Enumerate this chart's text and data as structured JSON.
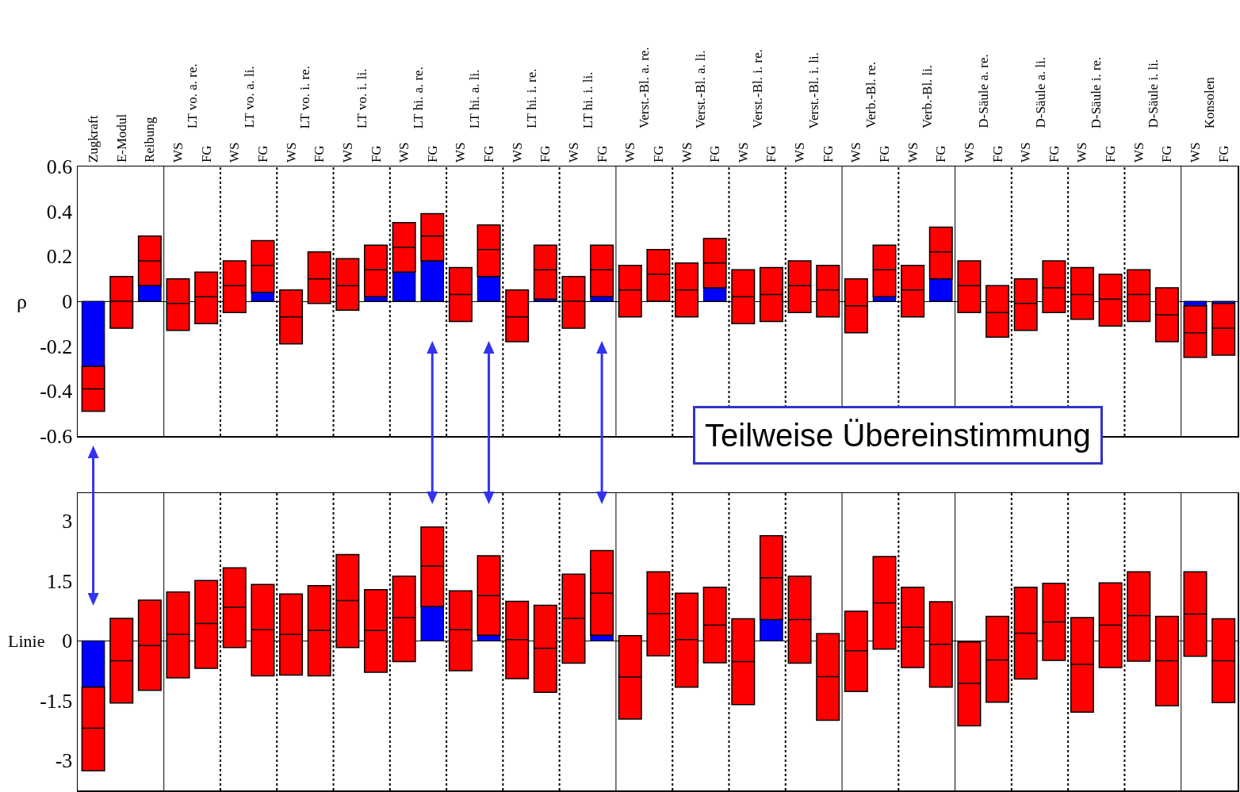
{
  "chart_data": [
    {
      "type": "box",
      "ylabel": "ρ",
      "ylim": [
        -0.6,
        0.6
      ],
      "yticks": [
        0.6,
        0.4,
        0.2,
        0,
        -0.2,
        -0.4,
        -0.6
      ],
      "categories": [
        "Zugkraft",
        "E-Modul",
        "Reibung",
        "WS",
        "FG",
        "WS",
        "FG",
        "WS",
        "FG",
        "WS",
        "FG",
        "WS",
        "FG",
        "WS",
        "FG",
        "WS",
        "FG",
        "WS",
        "FG",
        "WS",
        "FG",
        "WS",
        "FG",
        "WS",
        "FG",
        "WS",
        "FG",
        "WS",
        "FG",
        "WS",
        "FG",
        "WS",
        "FG",
        "WS",
        "FG",
        "WS",
        "FG",
        "WS",
        "FG",
        "WS",
        "FG"
      ],
      "series": [
        {
          "type": "bar",
          "color": "#0000ff",
          "values": [
            -0.29,
            null,
            0.07,
            null,
            null,
            null,
            0.04,
            null,
            null,
            null,
            0.02,
            0.13,
            0.18,
            null,
            0.11,
            null,
            0.01,
            null,
            0.02,
            null,
            null,
            null,
            0.06,
            null,
            null,
            null,
            null,
            null,
            0.02,
            null,
            0.1,
            null,
            null,
            null,
            null,
            null,
            null,
            null,
            null,
            -0.02,
            -0.01
          ]
        },
        {
          "type": "box",
          "color": "#ff0000",
          "boxes": [
            {
              "low": -0.49,
              "q1": -0.49,
              "median": -0.39,
              "q3": -0.29,
              "high": -0.29
            },
            {
              "low": -0.12,
              "q1": -0.12,
              "median": 0.0,
              "q3": 0.11,
              "high": 0.11
            },
            {
              "low": 0.07,
              "q1": 0.07,
              "median": 0.18,
              "q3": 0.29,
              "high": 0.29
            },
            {
              "low": -0.13,
              "q1": -0.13,
              "median": -0.01,
              "q3": 0.1,
              "high": 0.1
            },
            {
              "low": -0.1,
              "q1": -0.1,
              "median": 0.02,
              "q3": 0.13,
              "high": 0.13
            },
            {
              "low": -0.05,
              "q1": -0.05,
              "median": 0.07,
              "q3": 0.18,
              "high": 0.18
            },
            {
              "low": 0.04,
              "q1": 0.04,
              "median": 0.16,
              "q3": 0.27,
              "high": 0.27
            },
            {
              "low": -0.19,
              "q1": -0.19,
              "median": -0.07,
              "q3": 0.05,
              "high": 0.05
            },
            {
              "low": -0.01,
              "q1": -0.01,
              "median": 0.1,
              "q3": 0.22,
              "high": 0.22
            },
            {
              "low": -0.04,
              "q1": -0.04,
              "median": 0.07,
              "q3": 0.19,
              "high": 0.19
            },
            {
              "low": 0.02,
              "q1": 0.02,
              "median": 0.14,
              "q3": 0.25,
              "high": 0.25
            },
            {
              "low": 0.13,
              "q1": 0.13,
              "median": 0.24,
              "q3": 0.35,
              "high": 0.35
            },
            {
              "low": 0.18,
              "q1": 0.18,
              "median": 0.29,
              "q3": 0.39,
              "high": 0.39
            },
            {
              "low": -0.09,
              "q1": -0.09,
              "median": 0.03,
              "q3": 0.15,
              "high": 0.15
            },
            {
              "low": 0.11,
              "q1": 0.11,
              "median": 0.23,
              "q3": 0.34,
              "high": 0.34
            },
            {
              "low": -0.18,
              "q1": -0.18,
              "median": -0.07,
              "q3": 0.05,
              "high": 0.05
            },
            {
              "low": 0.01,
              "q1": 0.01,
              "median": 0.14,
              "q3": 0.25,
              "high": 0.25
            },
            {
              "low": -0.12,
              "q1": -0.12,
              "median": 0.0,
              "q3": 0.11,
              "high": 0.11
            },
            {
              "low": 0.02,
              "q1": 0.02,
              "median": 0.14,
              "q3": 0.25,
              "high": 0.25
            },
            {
              "low": -0.07,
              "q1": -0.07,
              "median": 0.05,
              "q3": 0.16,
              "high": 0.16
            },
            {
              "low": 0.0,
              "q1": 0.0,
              "median": 0.12,
              "q3": 0.23,
              "high": 0.23
            },
            {
              "low": -0.07,
              "q1": -0.07,
              "median": 0.05,
              "q3": 0.17,
              "high": 0.17
            },
            {
              "low": 0.06,
              "q1": 0.06,
              "median": 0.17,
              "q3": 0.28,
              "high": 0.28
            },
            {
              "low": -0.1,
              "q1": -0.1,
              "median": 0.02,
              "q3": 0.14,
              "high": 0.14
            },
            {
              "low": -0.09,
              "q1": -0.09,
              "median": 0.03,
              "q3": 0.15,
              "high": 0.15
            },
            {
              "low": -0.05,
              "q1": -0.05,
              "median": 0.07,
              "q3": 0.18,
              "high": 0.18
            },
            {
              "low": -0.07,
              "q1": -0.07,
              "median": 0.05,
              "q3": 0.16,
              "high": 0.16
            },
            {
              "low": -0.14,
              "q1": -0.14,
              "median": -0.02,
              "q3": 0.1,
              "high": 0.1
            },
            {
              "low": 0.02,
              "q1": 0.02,
              "median": 0.14,
              "q3": 0.25,
              "high": 0.25
            },
            {
              "low": -0.07,
              "q1": -0.07,
              "median": 0.05,
              "q3": 0.16,
              "high": 0.16
            },
            {
              "low": 0.1,
              "q1": 0.1,
              "median": 0.22,
              "q3": 0.33,
              "high": 0.33
            },
            {
              "low": -0.05,
              "q1": -0.05,
              "median": 0.07,
              "q3": 0.18,
              "high": 0.18
            },
            {
              "low": -0.16,
              "q1": -0.16,
              "median": -0.05,
              "q3": 0.07,
              "high": 0.07
            },
            {
              "low": -0.13,
              "q1": -0.13,
              "median": -0.01,
              "q3": 0.1,
              "high": 0.1
            },
            {
              "low": -0.05,
              "q1": -0.05,
              "median": 0.06,
              "q3": 0.18,
              "high": 0.18
            },
            {
              "low": -0.08,
              "q1": -0.08,
              "median": 0.03,
              "q3": 0.15,
              "high": 0.15
            },
            {
              "low": -0.11,
              "q1": -0.11,
              "median": 0.01,
              "q3": 0.12,
              "high": 0.12
            },
            {
              "low": -0.09,
              "q1": -0.09,
              "median": 0.03,
              "q3": 0.14,
              "high": 0.14
            },
            {
              "low": -0.18,
              "q1": -0.18,
              "median": -0.06,
              "q3": 0.06,
              "high": 0.06
            },
            {
              "low": -0.25,
              "q1": -0.25,
              "median": -0.14,
              "q3": -0.02,
              "high": -0.02
            },
            {
              "low": -0.24,
              "q1": -0.24,
              "median": -0.12,
              "q3": -0.01,
              "high": -0.01
            }
          ]
        }
      ],
      "annotations": [
        "LT vo. a. re.",
        "LT vo. a. li.",
        "LT vo. i. re.",
        "LT vo. i. li.",
        "LT hi. a. re.",
        "LT hi. a. li.",
        "LT hi. i. re.",
        "LT hi. i. li.",
        "Verst.-Bl. a. re.",
        "Verst.-Bl. a. li.",
        "Verst.-Bl. i. re.",
        "Verst.-Bl. i. li.",
        "Verb.-Bl. re.",
        "Verb.-Bl. li.",
        "D-Säule a. re.",
        "D-Säule a. li.",
        "D-Säule i. re.",
        "D-Säule i. li.",
        "Konsolen"
      ]
    },
    {
      "type": "box",
      "ylabel": "Linie",
      "ylim": [
        -3.75,
        3.7
      ],
      "yticks": [
        3,
        1.5,
        0,
        -1.5,
        -3
      ],
      "tick_labels": "y",
      "categories": [
        null,
        null,
        null,
        null,
        null,
        null,
        null,
        null,
        null,
        null,
        null,
        null,
        null,
        null,
        null,
        null,
        null,
        null,
        null,
        null,
        null,
        null,
        null,
        null,
        null,
        null,
        null,
        null,
        null,
        null,
        null,
        null,
        null,
        null,
        null,
        null,
        null,
        null,
        null,
        null,
        null
      ],
      "series": [
        {
          "type": "bar",
          "color": "#0000ff",
          "values": [
            -1.16,
            null,
            null,
            null,
            null,
            null,
            null,
            null,
            null,
            null,
            null,
            null,
            0.86,
            null,
            0.14,
            null,
            null,
            null,
            0.14,
            null,
            null,
            null,
            null,
            null,
            0.53,
            null,
            null,
            null,
            null,
            null,
            null,
            null,
            null,
            null,
            null,
            null,
            null,
            null,
            null,
            null,
            null
          ]
        },
        {
          "type": "box",
          "color": "#ff0000",
          "boxes": [
            {
              "low": -3.26,
              "q1": -3.26,
              "median": -2.19,
              "q3": -1.16,
              "high": -1.16
            },
            {
              "low": -1.56,
              "q1": -1.56,
              "median": -0.5,
              "q3": 0.56,
              "high": 0.56
            },
            {
              "low": -1.24,
              "q1": -1.24,
              "median": -0.12,
              "q3": 1.02,
              "high": 1.02
            },
            {
              "low": -0.93,
              "q1": -0.93,
              "median": 0.16,
              "q3": 1.22,
              "high": 1.22
            },
            {
              "low": -0.69,
              "q1": -0.69,
              "median": 0.43,
              "q3": 1.51,
              "high": 1.51
            },
            {
              "low": -0.17,
              "q1": -0.17,
              "median": 0.84,
              "q3": 1.83,
              "high": 1.83
            },
            {
              "low": -0.88,
              "q1": -0.88,
              "median": 0.28,
              "q3": 1.41,
              "high": 1.41
            },
            {
              "low": -0.86,
              "q1": -0.86,
              "median": 0.16,
              "q3": 1.17,
              "high": 1.17
            },
            {
              "low": -0.88,
              "q1": -0.88,
              "median": 0.26,
              "q3": 1.38,
              "high": 1.38
            },
            {
              "low": -0.17,
              "q1": -0.17,
              "median": 1.01,
              "q3": 2.16,
              "high": 2.16
            },
            {
              "low": -0.79,
              "q1": -0.79,
              "median": 0.26,
              "q3": 1.28,
              "high": 1.28
            },
            {
              "low": -0.52,
              "q1": -0.52,
              "median": 0.58,
              "q3": 1.62,
              "high": 1.62
            },
            {
              "low": 0.86,
              "q1": 0.86,
              "median": 1.87,
              "q3": 2.85,
              "high": 2.85
            },
            {
              "low": -0.75,
              "q1": -0.75,
              "median": 0.28,
              "q3": 1.25,
              "high": 1.25
            },
            {
              "low": 0.14,
              "q1": 0.14,
              "median": 1.13,
              "q3": 2.13,
              "high": 2.13
            },
            {
              "low": -0.95,
              "q1": -0.95,
              "median": 0.03,
              "q3": 0.99,
              "high": 0.99
            },
            {
              "low": -1.29,
              "q1": -1.29,
              "median": -0.19,
              "q3": 0.89,
              "high": 0.89
            },
            {
              "low": -0.56,
              "q1": -0.56,
              "median": 0.56,
              "q3": 1.67,
              "high": 1.67
            },
            {
              "low": 0.14,
              "q1": 0.14,
              "median": 1.19,
              "q3": 2.26,
              "high": 2.26
            },
            {
              "low": -1.96,
              "q1": -1.96,
              "median": -0.91,
              "q3": 0.13,
              "high": 0.13
            },
            {
              "low": -0.38,
              "q1": -0.38,
              "median": 0.68,
              "q3": 1.73,
              "high": 1.73
            },
            {
              "low": -1.16,
              "q1": -1.16,
              "median": 0.03,
              "q3": 1.19,
              "high": 1.19
            },
            {
              "low": -0.55,
              "q1": -0.55,
              "median": 0.39,
              "q3": 1.34,
              "high": 1.34
            },
            {
              "low": -1.6,
              "q1": -1.6,
              "median": -0.52,
              "q3": 0.55,
              "high": 0.55
            },
            {
              "low": 0.53,
              "q1": 0.53,
              "median": 1.58,
              "q3": 2.63,
              "high": 2.63
            },
            {
              "low": -0.56,
              "q1": -0.56,
              "median": 0.53,
              "q3": 1.62,
              "high": 1.62
            },
            {
              "low": -1.99,
              "q1": -1.99,
              "median": -0.9,
              "q3": 0.18,
              "high": 0.18
            },
            {
              "low": -1.27,
              "q1": -1.27,
              "median": -0.25,
              "q3": 0.74,
              "high": 0.74
            },
            {
              "low": -0.21,
              "q1": -0.21,
              "median": 0.95,
              "q3": 2.11,
              "high": 2.11
            },
            {
              "low": -0.67,
              "q1": -0.67,
              "median": 0.34,
              "q3": 1.34,
              "high": 1.34
            },
            {
              "low": -1.16,
              "q1": -1.16,
              "median": -0.09,
              "q3": 0.98,
              "high": 0.98
            },
            {
              "low": -2.13,
              "q1": -2.13,
              "median": -1.07,
              "q3": -0.03,
              "high": -0.03
            },
            {
              "low": -1.54,
              "q1": -1.54,
              "median": -0.48,
              "q3": 0.61,
              "high": 0.61
            },
            {
              "low": -0.96,
              "q1": -0.96,
              "median": 0.19,
              "q3": 1.34,
              "high": 1.34
            },
            {
              "low": -0.49,
              "q1": -0.49,
              "median": 0.47,
              "q3": 1.44,
              "high": 1.44
            },
            {
              "low": -1.79,
              "q1": -1.79,
              "median": -0.59,
              "q3": 0.58,
              "high": 0.58
            },
            {
              "low": -0.67,
              "q1": -0.67,
              "median": 0.39,
              "q3": 1.45,
              "high": 1.45
            },
            {
              "low": -0.51,
              "q1": -0.51,
              "median": 0.63,
              "q3": 1.73,
              "high": 1.73
            },
            {
              "low": -1.63,
              "q1": -1.63,
              "median": -0.5,
              "q3": 0.61,
              "high": 0.61
            },
            {
              "low": -0.39,
              "q1": -0.39,
              "median": 0.67,
              "q3": 1.73,
              "high": 1.73
            },
            {
              "low": -1.55,
              "q1": -1.55,
              "median": -0.5,
              "q3": 0.55,
              "high": 0.55
            }
          ]
        }
      ],
      "annotations": [
        "Teilweise Übereinstimmung"
      ]
    }
  ]
}
